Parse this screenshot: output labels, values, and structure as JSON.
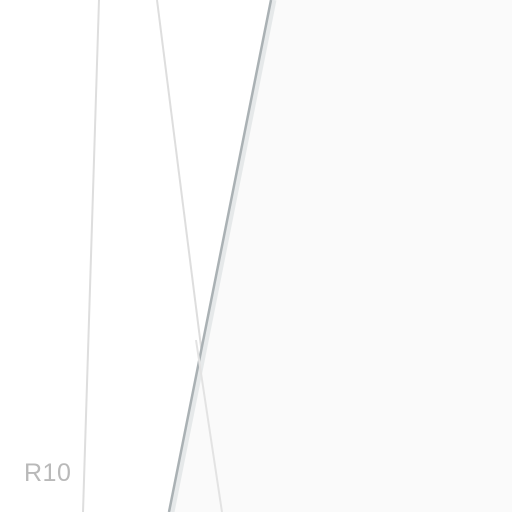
{
  "label": "R10",
  "colors": {
    "background": "#ffffff",
    "panel": "#fafafa",
    "panel_edge_dark": "#aab1b4",
    "panel_edge_light": "#dfe3e4",
    "thin_lines": "#dedede",
    "label_text": "#b9b9b9"
  }
}
